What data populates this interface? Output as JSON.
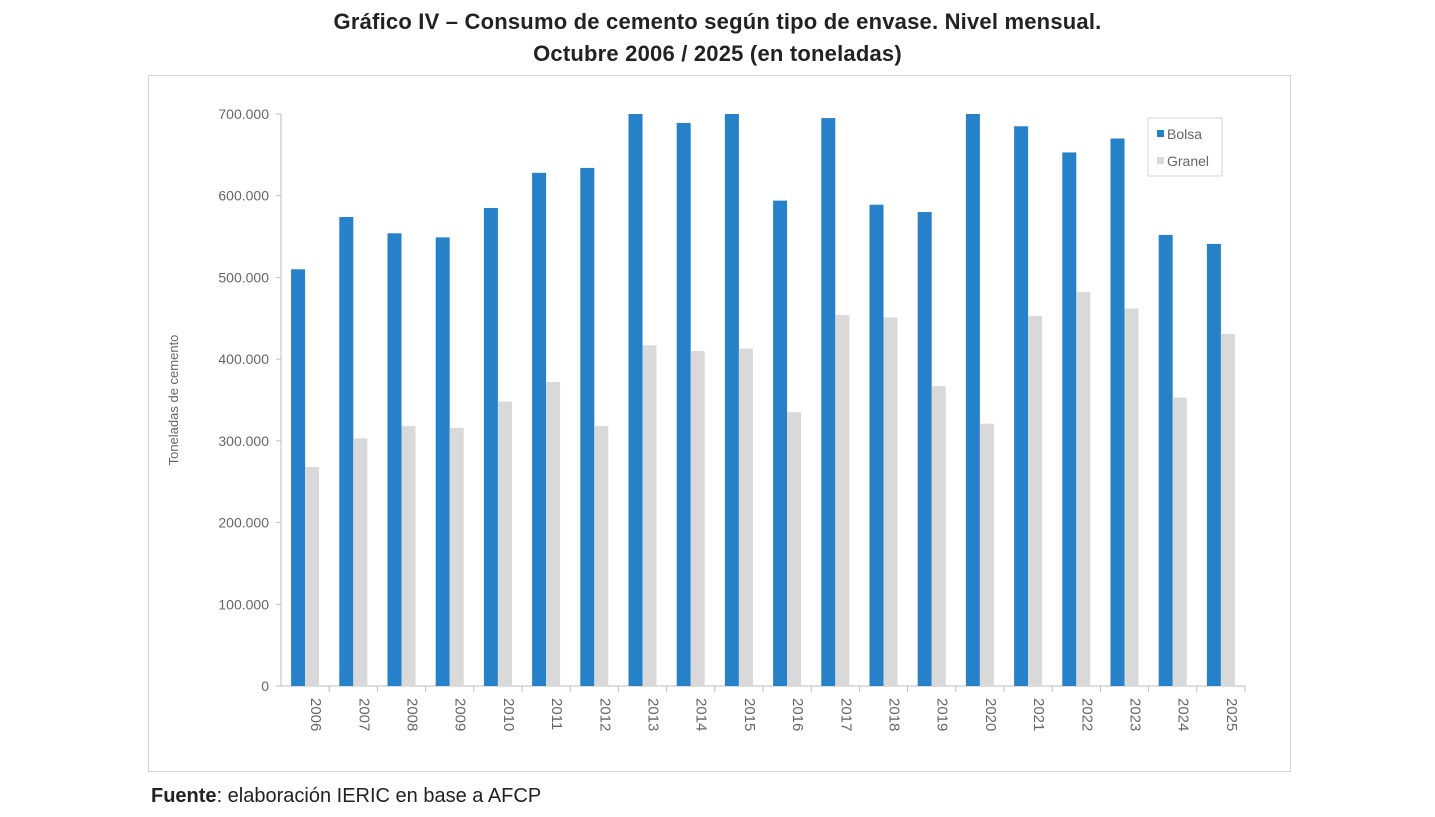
{
  "title_line1": "Gráfico IV – Consumo de cemento según tipo de envase. Nivel mensual.",
  "title_line2": "Octubre 2006 / 2025 (en toneladas)",
  "footer": {
    "label": "Fuente",
    "text": ": elaboración IERIC en base a AFCP"
  },
  "chart_data": {
    "type": "bar",
    "title": "Gráfico IV – Consumo de cemento según tipo de envase. Nivel mensual. Octubre 2006 / 2025 (en toneladas)",
    "xlabel": "",
    "ylabel": "Toneladas de cemento",
    "ylim": [
      0,
      700000
    ],
    "yticks": [
      0,
      100000,
      200000,
      300000,
      400000,
      500000,
      600000,
      700000
    ],
    "ytick_labels": [
      "0",
      "100.000",
      "200.000",
      "300.000",
      "400.000",
      "500.000",
      "600.000",
      "700.000"
    ],
    "grid": false,
    "legend_position": "top-right",
    "categories": [
      "2006",
      "2007",
      "2008",
      "2009",
      "2010",
      "2011",
      "2012",
      "2013",
      "2014",
      "2015",
      "2016",
      "2017",
      "2018",
      "2019",
      "2020",
      "2021",
      "2022",
      "2023",
      "2024",
      "2025"
    ],
    "series": [
      {
        "name": "Bolsa",
        "color": "#2681c8",
        "values": [
          510000,
          574000,
          554000,
          549000,
          585000,
          628000,
          634000,
          700000,
          689000,
          700000,
          594000,
          695000,
          589000,
          580000,
          700000,
          685000,
          653000,
          670000,
          552000,
          541000
        ]
      },
      {
        "name": "Granel",
        "color": "#d9d9d9",
        "values": [
          268000,
          303000,
          318000,
          316000,
          348000,
          372000,
          318000,
          417000,
          410000,
          413000,
          335000,
          454000,
          451000,
          367000,
          321000,
          453000,
          482000,
          462000,
          353000,
          431000
        ]
      }
    ]
  }
}
